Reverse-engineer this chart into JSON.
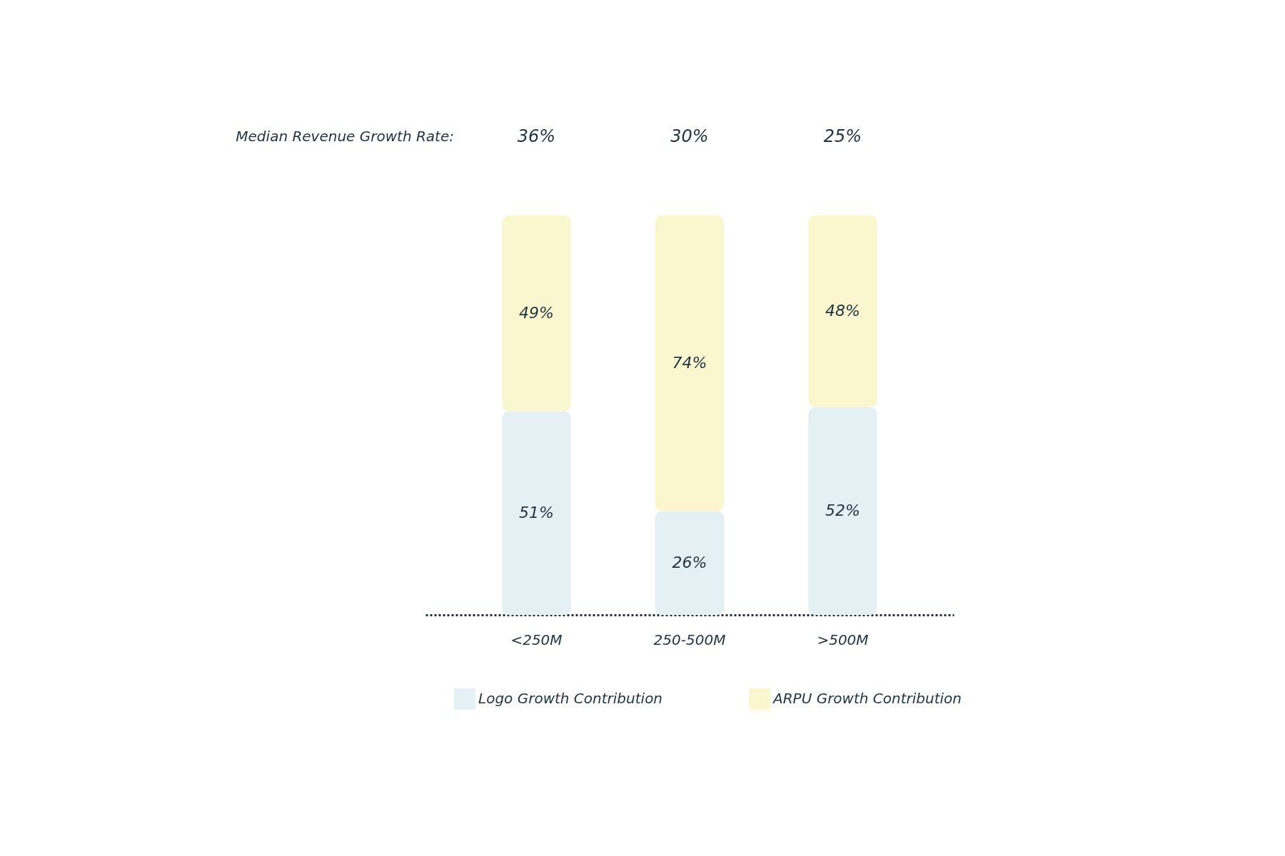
{
  "chart_data": {
    "type": "bar",
    "stacked": true,
    "legend": "bottom",
    "grid": false,
    "categories": [
      "<250M",
      "250-500M",
      ">500M"
    ],
    "series": [
      {
        "name": "Logo Growth Contribution",
        "color": "#e4f0f3",
        "values": [
          51,
          26,
          52
        ],
        "value_labels": [
          "51%",
          "26%",
          "52%"
        ]
      },
      {
        "name": "ARPU Growth Contribution",
        "color": "#faf7cf",
        "values": [
          49,
          74,
          48
        ],
        "value_labels": [
          "49%",
          "74%",
          "48%"
        ]
      }
    ],
    "annotations": [
      "Median Revenue Growth Rate:",
      "36%",
      "30%",
      "25%"
    ]
  }
}
